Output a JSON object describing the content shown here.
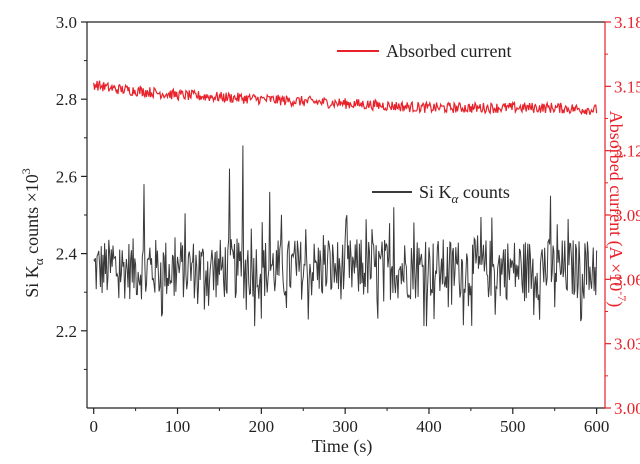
{
  "chart_data": {
    "type": "line",
    "xlabel": "Time (s)",
    "ylabel_left": "Si K",
    "ylabel_left_sub": "α",
    "ylabel_left_rest": " counts ×10",
    "ylabel_left_sup": "3",
    "ylabel_right": "Absorbed current (A ×10",
    "ylabel_right_sup": "-7",
    "ylabel_right_end": ")",
    "xlim": [
      -8,
      610
    ],
    "ylim_left": [
      2.0,
      3.0
    ],
    "ylim_right": [
      3.0,
      3.18
    ],
    "x_ticks": [
      "0",
      "100",
      "200",
      "300",
      "400",
      "500",
      "600"
    ],
    "y_left_ticks": [
      "2.2",
      "2.4",
      "2.6",
      "2.8",
      "3.0"
    ],
    "y_right_ticks": [
      "3.00",
      "3.03",
      "3.06",
      "3.09",
      "3.12",
      "3.15",
      "3.18"
    ],
    "series": [
      {
        "name": "Absorbed current",
        "axis": "right",
        "color": "#e8222a",
        "x_range": [
          0,
          600
        ],
        "values_by_time": [
          [
            0,
            3.151
          ],
          [
            20,
            3.149
          ],
          [
            50,
            3.148
          ],
          [
            100,
            3.146
          ],
          [
            150,
            3.145
          ],
          [
            200,
            3.144
          ],
          [
            250,
            3.143
          ],
          [
            300,
            3.142
          ],
          [
            350,
            3.141
          ],
          [
            400,
            3.14
          ],
          [
            450,
            3.14
          ],
          [
            500,
            3.14
          ],
          [
            550,
            3.14
          ],
          [
            600,
            3.139
          ]
        ],
        "noise_amplitude": 0.0025
      },
      {
        "name": "Si K",
        "name_sub": "α",
        "name_rest": " counts",
        "axis": "left",
        "color": "#3a3a3a",
        "x_range": [
          0,
          600
        ],
        "mean": 2.36,
        "min": 2.16,
        "max": 2.68,
        "noise_amplitude": 0.08,
        "spikes": [
          [
            178,
            2.68
          ],
          [
            162,
            2.62
          ],
          [
            60,
            2.58
          ],
          [
            210,
            2.56
          ],
          [
            545,
            2.55
          ],
          [
            358,
            2.52
          ]
        ]
      }
    ],
    "legend": [
      "Absorbed current",
      "Si Kα counts"
    ],
    "grid": false
  }
}
